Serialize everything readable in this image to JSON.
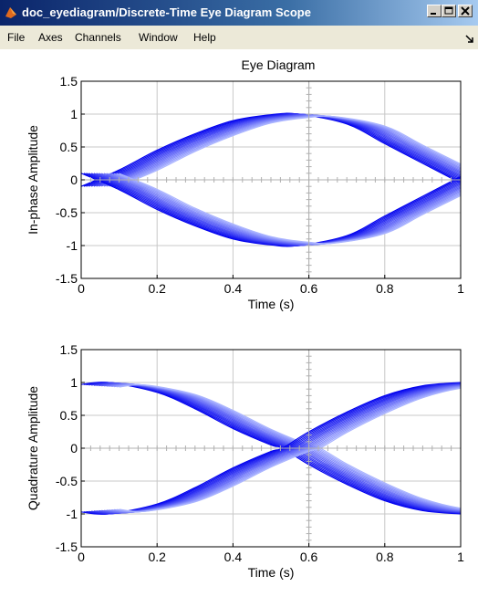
{
  "window": {
    "title": "doc_eyediagram/Discrete-Time Eye Diagram Scope",
    "controls": [
      "minimize",
      "maximize",
      "close"
    ]
  },
  "menu": {
    "items": [
      "File",
      "Axes",
      "Channels",
      "Window",
      "Help"
    ]
  },
  "colors": {
    "titlebar_start": "#0a246a",
    "titlebar_end": "#a6caf0",
    "trace_strong": "#0000ee",
    "trace_light": "#aab4ff",
    "grid": "#c8c8c8"
  },
  "chart_data": [
    {
      "type": "line",
      "title": "Eye Diagram",
      "xlabel": "Time (s)",
      "ylabel": "In-phase Amplitude",
      "xlim": [
        0,
        1
      ],
      "ylim": [
        -1.5,
        1.5
      ],
      "xticks": [
        "0",
        "0.2",
        "0.4",
        "0.6",
        "0.8",
        "1"
      ],
      "yticks": [
        "-1.5",
        "-1",
        "-0.5",
        "0",
        "0.5",
        "1",
        "1.5"
      ],
      "grid": true,
      "series": [
        {
          "values_x": [
            0,
            0.1,
            0.2,
            0.3,
            0.4,
            0.5,
            0.57,
            0.7,
            0.8,
            0.9,
            1.0
          ],
          "values": [
            -0.1,
            0.15,
            0.45,
            0.7,
            0.9,
            0.99,
            1.0,
            0.85,
            0.55,
            0.25,
            -0.05
          ]
        },
        {
          "values_x": [
            0,
            0.1,
            0.2,
            0.3,
            0.4,
            0.5,
            0.57,
            0.7,
            0.8,
            0.9,
            1.0
          ],
          "values": [
            0.1,
            -0.15,
            -0.45,
            -0.7,
            -0.9,
            -0.99,
            -1.0,
            -0.85,
            -0.55,
            -0.25,
            0.05
          ]
        }
      ],
      "trace_spread_x": 0.1
    },
    {
      "type": "line",
      "title": "",
      "xlabel": "Time (s)",
      "ylabel": "Quadrature Amplitude",
      "xlim": [
        0,
        1
      ],
      "ylim": [
        -1.5,
        1.5
      ],
      "xticks": [
        "0",
        "0.2",
        "0.4",
        "0.6",
        "0.8",
        "1"
      ],
      "yticks": [
        "-1.5",
        "-1",
        "-0.5",
        "0",
        "0.5",
        "1",
        "1.5"
      ],
      "grid": true,
      "series": [
        {
          "values_x": [
            0,
            0.07,
            0.2,
            0.3,
            0.4,
            0.5,
            0.53,
            0.6,
            0.7,
            0.8,
            0.9,
            1.0
          ],
          "values": [
            0.97,
            1.0,
            0.85,
            0.6,
            0.3,
            0.05,
            0.0,
            -0.25,
            -0.55,
            -0.8,
            -0.95,
            -1.0
          ]
        },
        {
          "values_x": [
            0,
            0.07,
            0.2,
            0.3,
            0.4,
            0.5,
            0.53,
            0.6,
            0.7,
            0.8,
            0.9,
            1.0
          ],
          "values": [
            -0.97,
            -1.0,
            -0.85,
            -0.6,
            -0.3,
            -0.05,
            0.0,
            0.25,
            0.55,
            0.8,
            0.95,
            1.0
          ]
        }
      ],
      "trace_spread_x": 0.1
    }
  ]
}
